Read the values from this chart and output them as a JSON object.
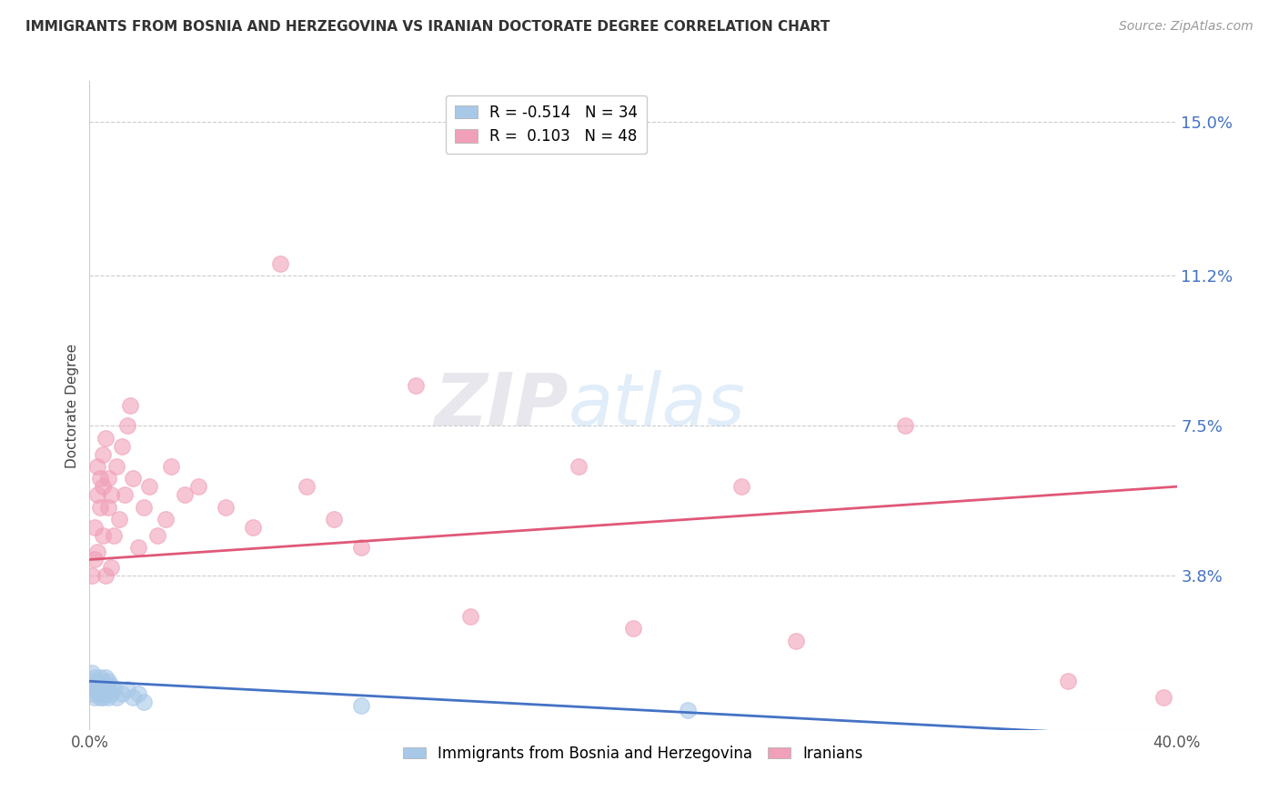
{
  "title": "IMMIGRANTS FROM BOSNIA AND HERZEGOVINA VS IRANIAN DOCTORATE DEGREE CORRELATION CHART",
  "source": "Source: ZipAtlas.com",
  "ylabel": "Doctorate Degree",
  "xlim": [
    0.0,
    0.4
  ],
  "ylim": [
    0.0,
    0.16
  ],
  "ytick_labels": [
    "3.8%",
    "7.5%",
    "11.2%",
    "15.0%"
  ],
  "ytick_positions": [
    0.038,
    0.075,
    0.112,
    0.15
  ],
  "blue_color": "#A8C8E8",
  "pink_color": "#F0A0B8",
  "blue_line_color": "#4472C4",
  "pink_line_color": "#E05878",
  "legend_blue_label": "R = -0.514   N = 34",
  "legend_pink_label": "R =  0.103   N = 48",
  "legend1_label": "Immigrants from Bosnia and Herzegovina",
  "legend2_label": "Iranians",
  "blue_scatter_x": [
    0.001,
    0.001,
    0.001,
    0.002,
    0.002,
    0.002,
    0.002,
    0.003,
    0.003,
    0.003,
    0.004,
    0.004,
    0.004,
    0.004,
    0.005,
    0.005,
    0.005,
    0.006,
    0.006,
    0.006,
    0.007,
    0.007,
    0.007,
    0.008,
    0.008,
    0.009,
    0.01,
    0.012,
    0.014,
    0.016,
    0.018,
    0.02,
    0.1,
    0.22
  ],
  "blue_scatter_y": [
    0.012,
    0.009,
    0.014,
    0.011,
    0.008,
    0.013,
    0.01,
    0.009,
    0.012,
    0.01,
    0.011,
    0.008,
    0.013,
    0.009,
    0.01,
    0.012,
    0.008,
    0.011,
    0.009,
    0.013,
    0.01,
    0.008,
    0.012,
    0.009,
    0.011,
    0.01,
    0.008,
    0.009,
    0.01,
    0.008,
    0.009,
    0.007,
    0.006,
    0.005
  ],
  "pink_scatter_x": [
    0.001,
    0.002,
    0.002,
    0.003,
    0.003,
    0.003,
    0.004,
    0.004,
    0.005,
    0.005,
    0.005,
    0.006,
    0.006,
    0.007,
    0.007,
    0.008,
    0.008,
    0.009,
    0.01,
    0.011,
    0.012,
    0.013,
    0.014,
    0.015,
    0.016,
    0.018,
    0.02,
    0.022,
    0.025,
    0.028,
    0.03,
    0.035,
    0.04,
    0.05,
    0.06,
    0.07,
    0.08,
    0.09,
    0.1,
    0.12,
    0.14,
    0.18,
    0.2,
    0.24,
    0.26,
    0.3,
    0.36,
    0.395
  ],
  "pink_scatter_y": [
    0.038,
    0.042,
    0.05,
    0.058,
    0.065,
    0.044,
    0.062,
    0.055,
    0.06,
    0.068,
    0.048,
    0.072,
    0.038,
    0.055,
    0.062,
    0.058,
    0.04,
    0.048,
    0.065,
    0.052,
    0.07,
    0.058,
    0.075,
    0.08,
    0.062,
    0.045,
    0.055,
    0.06,
    0.048,
    0.052,
    0.065,
    0.058,
    0.06,
    0.055,
    0.05,
    0.115,
    0.06,
    0.052,
    0.045,
    0.085,
    0.028,
    0.065,
    0.025,
    0.06,
    0.022,
    0.075,
    0.012,
    0.008
  ],
  "watermark_zip": "ZIP",
  "watermark_atlas": "atlas",
  "grid_color": "#CCCCCC",
  "background_color": "#FFFFFF",
  "blue_trend_start_y": 0.012,
  "blue_trend_end_y": -0.002,
  "pink_trend_start_y": 0.042,
  "pink_trend_end_y": 0.06
}
